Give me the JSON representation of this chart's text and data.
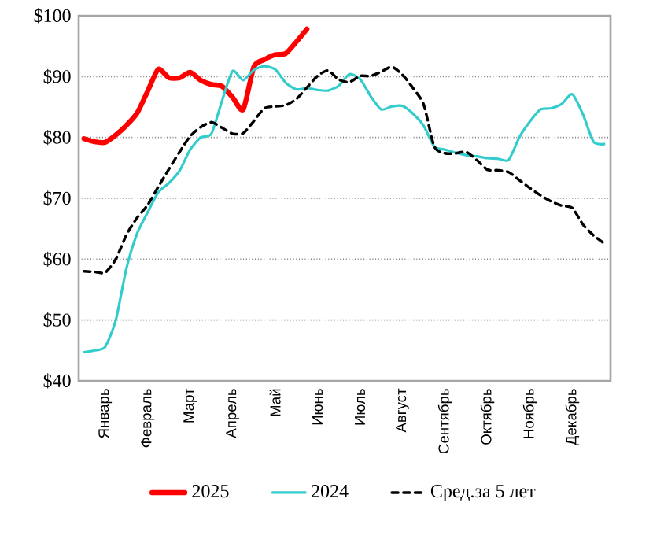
{
  "chart_data": {
    "type": "line",
    "categories": [
      null,
      null,
      "Январь",
      null,
      null,
      null,
      "Февраль",
      null,
      null,
      null,
      "Март",
      null,
      null,
      null,
      "Апрель",
      null,
      null,
      null,
      "Май",
      null,
      null,
      null,
      "Июнь",
      null,
      null,
      null,
      "Июль",
      null,
      null,
      null,
      "Август",
      null,
      null,
      null,
      "Сентябрь",
      null,
      null,
      null,
      "Октябрь",
      null,
      null,
      null,
      "Ноябрь",
      null,
      null,
      null,
      "Декабрь",
      null,
      null,
      null
    ],
    "ylim": [
      40,
      100
    ],
    "yticks": [
      {
        "value": 40,
        "label": "$40"
      },
      {
        "value": 50,
        "label": "$50"
      },
      {
        "value": 60,
        "label": "$60"
      },
      {
        "value": 70,
        "label": "$70"
      },
      {
        "value": 80,
        "label": "$80"
      },
      {
        "value": 90,
        "label": "$90"
      },
      {
        "value": 100,
        "label": "$100"
      }
    ],
    "grid": "y",
    "legend": "bottom",
    "marker": "none",
    "series": [
      {
        "name": "2025",
        "color": "#ff0000",
        "line_style": "solid",
        "values": [
          79.8,
          79.3,
          79.2,
          80.4,
          82.0,
          84.0,
          87.6,
          91.2,
          89.8,
          89.8,
          90.7,
          89.4,
          88.7,
          88.4,
          86.6,
          84.6,
          91.6,
          92.8,
          93.6,
          93.8,
          95.7,
          97.8,
          null,
          null,
          null,
          null,
          null,
          null,
          null,
          null,
          null,
          null,
          null,
          null,
          null,
          null,
          null,
          null,
          null,
          null,
          null,
          null,
          null,
          null,
          null,
          null,
          null,
          null,
          null,
          null
        ]
      },
      {
        "name": "2024",
        "color": "#33cccc",
        "line_style": "solid",
        "values": [
          44.7,
          45.0,
          45.6,
          50.0,
          58.5,
          64.2,
          67.7,
          71.0,
          72.5,
          74.5,
          78.0,
          80.0,
          80.6,
          86.0,
          90.9,
          89.4,
          91.1,
          91.7,
          91.2,
          89.0,
          87.9,
          88.1,
          87.8,
          87.7,
          88.5,
          90.4,
          89.6,
          86.8,
          84.6,
          85.1,
          85.2,
          83.9,
          81.9,
          78.5,
          78.0,
          77.5,
          77.1,
          76.9,
          76.6,
          76.5,
          76.3,
          80.0,
          82.6,
          84.6,
          84.8,
          85.5,
          87.1,
          83.8,
          79.3,
          78.9
        ]
      },
      {
        "name": "Сред.за 5 лет",
        "color": "#000000",
        "line_style": "dashed",
        "values": [
          58.0,
          57.9,
          57.8,
          60.0,
          64.0,
          66.8,
          68.9,
          71.9,
          74.8,
          77.6,
          80.2,
          81.7,
          82.5,
          81.6,
          80.6,
          80.7,
          82.7,
          84.8,
          85.1,
          85.3,
          86.3,
          88.2,
          90.1,
          91.0,
          89.5,
          89.1,
          90.1,
          90.1,
          90.8,
          91.6,
          90.3,
          88.1,
          85.4,
          78.5,
          77.4,
          77.4,
          77.6,
          76.3,
          74.7,
          74.6,
          74.3,
          73.0,
          71.7,
          70.5,
          69.5,
          68.8,
          68.4,
          65.7,
          63.9,
          62.6
        ]
      }
    ]
  }
}
